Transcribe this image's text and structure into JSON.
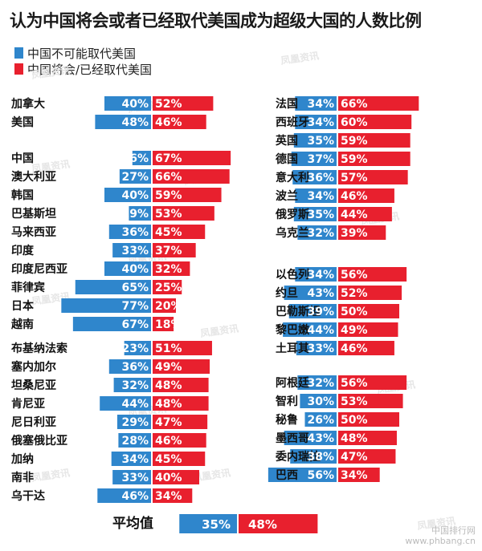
{
  "title": "认为中国将会或者已经取代美国成为超级大国的人数比例",
  "legend": [
    {
      "label": "中国不可能取代美国",
      "color": "#2f86cc"
    },
    {
      "label": "中国将会/已经取代美国",
      "color": "#e8202e"
    }
  ],
  "colors": {
    "blue": "#2f86cc",
    "red": "#e8202e"
  },
  "chart_data": {
    "type": "bar",
    "series": [
      {
        "name": "中国不可能取代美国",
        "key": "no"
      },
      {
        "name": "中国将会/已经取代美国",
        "key": "yes"
      }
    ],
    "groups": [
      {
        "column": "left",
        "rows": [
          {
            "country": "加拿大",
            "no": 40,
            "yes": 52
          },
          {
            "country": "美国",
            "no": 48,
            "yes": 46
          }
        ]
      },
      {
        "column": "left",
        "rows": [
          {
            "country": "中国",
            "no": 16,
            "yes": 67
          },
          {
            "country": "澳大利亚",
            "no": 27,
            "yes": 66
          },
          {
            "country": "韩国",
            "no": 40,
            "yes": 59
          },
          {
            "country": "巴基斯坦",
            "no": 19,
            "yes": 53
          },
          {
            "country": "马来西亚",
            "no": 36,
            "yes": 45
          },
          {
            "country": "印度",
            "no": 33,
            "yes": 37
          },
          {
            "country": "印度尼西亚",
            "no": 40,
            "yes": 32
          },
          {
            "country": "菲律宾",
            "no": 65,
            "yes": 25
          },
          {
            "country": "日本",
            "no": 77,
            "yes": 20
          },
          {
            "country": "越南",
            "no": 67,
            "yes": 18
          }
        ]
      },
      {
        "column": "left",
        "rows": [
          {
            "country": "布基纳法索",
            "no": 23,
            "yes": 51
          },
          {
            "country": "塞内加尔",
            "no": 36,
            "yes": 49
          },
          {
            "country": "坦桑尼亚",
            "no": 32,
            "yes": 48
          },
          {
            "country": "肯尼亚",
            "no": 44,
            "yes": 48
          },
          {
            "country": "尼日利亚",
            "no": 29,
            "yes": 47
          },
          {
            "country": "俄塞俄比亚",
            "no": 28,
            "yes": 46
          },
          {
            "country": "加纳",
            "no": 34,
            "yes": 45
          },
          {
            "country": "南非",
            "no": 33,
            "yes": 40
          },
          {
            "country": "乌干达",
            "no": 46,
            "yes": 34
          }
        ]
      },
      {
        "column": "right",
        "rows": [
          {
            "country": "法国",
            "no": 34,
            "yes": 66
          },
          {
            "country": "西班牙",
            "no": 34,
            "yes": 60
          },
          {
            "country": "英国",
            "no": 35,
            "yes": 59
          },
          {
            "country": "德国",
            "no": 37,
            "yes": 59
          },
          {
            "country": "意大利",
            "no": 36,
            "yes": 57
          },
          {
            "country": "波兰",
            "no": 34,
            "yes": 46
          },
          {
            "country": "俄罗斯",
            "no": 35,
            "yes": 44
          },
          {
            "country": "乌克兰",
            "no": 32,
            "yes": 39
          }
        ]
      },
      {
        "column": "right",
        "rows": [
          {
            "country": "以色列",
            "no": 34,
            "yes": 56
          },
          {
            "country": "约旦",
            "no": 43,
            "yes": 52
          },
          {
            "country": "巴勒斯坦",
            "no": 39,
            "yes": 50
          },
          {
            "country": "黎巴嫩",
            "no": 44,
            "yes": 49
          },
          {
            "country": "土耳其",
            "no": 33,
            "yes": 46
          }
        ]
      },
      {
        "column": "right",
        "rows": [
          {
            "country": "阿根廷",
            "no": 32,
            "yes": 56
          },
          {
            "country": "智利",
            "no": 30,
            "yes": 53
          },
          {
            "country": "秘鲁",
            "no": 26,
            "yes": 50
          },
          {
            "country": "墨西哥",
            "no": 43,
            "yes": 48
          },
          {
            "country": "委内瑞拉",
            "no": 38,
            "yes": 47
          },
          {
            "country": "巴西",
            "no": 56,
            "yes": 34
          }
        ]
      }
    ],
    "average": {
      "label": "平均值",
      "no": 35,
      "yes": 48
    }
  },
  "watermark": {
    "text": "凤凰资讯",
    "url": "news.ifeng.com"
  },
  "footer": {
    "site_name": "中国排行网",
    "site_url": "www.phbang.cn"
  }
}
